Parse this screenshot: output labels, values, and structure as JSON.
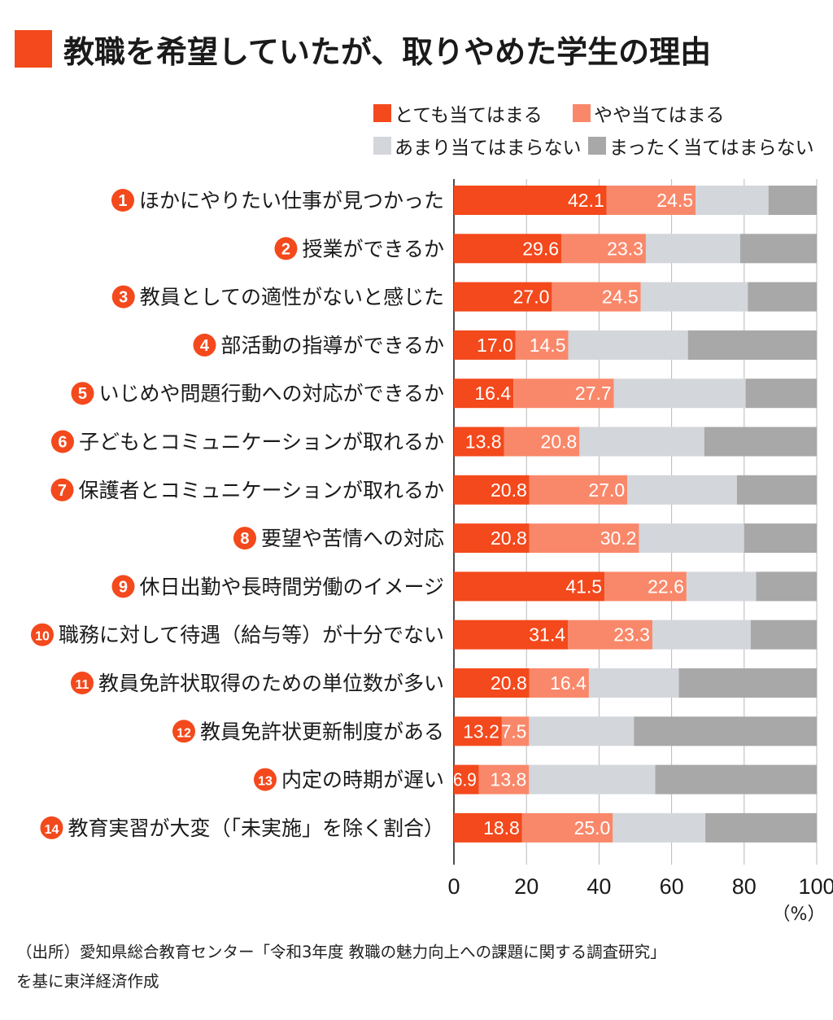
{
  "title": "教職を希望していたが、取りやめた学生の理由",
  "source_lines": [
    "（出所）愛知県総合教育センター「令和3年度 教職の魅力向上への課題に関する調査研究」",
    "を基に東洋経済作成"
  ],
  "colors": {
    "title_mark": "#f3491c",
    "badge": "#f3491c",
    "series": [
      "#f3491c",
      "#f9886a",
      "#d3d6db",
      "#a8a8a8"
    ]
  },
  "chart_data": {
    "type": "bar",
    "orientation": "horizontal",
    "stacked": true,
    "title": "教職を希望していたが、取りやめた学生の理由",
    "unit": "（%）",
    "xlim": [
      0,
      100
    ],
    "xticks": [
      "0",
      "20",
      "40",
      "60",
      "80",
      "100"
    ],
    "grid": true,
    "legend_position": "top-right",
    "badges": [
      "1",
      "2",
      "3",
      "4",
      "5",
      "6",
      "7",
      "8",
      "9",
      "10",
      "11",
      "12",
      "13",
      "14"
    ],
    "categories": [
      "ほかにやりたい仕事が見つかった",
      "授業ができるか",
      "教員としての適性がないと感じた",
      "部活動の指導ができるか",
      "いじめや問題行動への対応ができるか",
      "子どもとコミュニケーションが取れるか",
      "保護者とコミュニケーションが取れるか",
      "要望や苦情への対応",
      "休日出勤や長時間労働のイメージ",
      "職務に対して待遇（給与等）が十分でない",
      "教員免許状取得のための単位数が多い",
      "教員免許状更新制度がある",
      "内定の時期が遅い",
      "教育実習が大変（「未実施」を除く割合）"
    ],
    "series": [
      {
        "name": "とても当てはまる",
        "values": [
          42.1,
          29.6,
          27.0,
          17.0,
          16.4,
          13.8,
          20.8,
          20.8,
          41.5,
          31.4,
          20.8,
          13.2,
          6.9,
          18.8
        ],
        "labels": [
          "42.1",
          "29.6",
          "27.0",
          "17.0",
          "16.4",
          "13.8",
          "20.8",
          "20.8",
          "41.5",
          "31.4",
          "20.8",
          "13.2",
          "6.9",
          "18.8"
        ]
      },
      {
        "name": "やや当てはまる",
        "values": [
          24.5,
          23.3,
          24.5,
          14.5,
          27.7,
          20.8,
          27.0,
          30.2,
          22.6,
          23.3,
          16.4,
          7.5,
          13.8,
          25.0
        ],
        "labels": [
          "24.5",
          "23.3",
          "24.5",
          "14.5",
          "27.7",
          "20.8",
          "27.0",
          "30.2",
          "22.6",
          "23.3",
          "16.4",
          "7.5",
          "13.8",
          "25.0"
        ]
      },
      {
        "name": "あまり当てはまらない",
        "values": [
          20.1,
          26.0,
          29.5,
          33.0,
          36.3,
          34.4,
          30.2,
          29.0,
          19.2,
          27.1,
          24.8,
          28.9,
          34.8,
          25.5
        ]
      },
      {
        "name": "まったく当てはまらない",
        "values": [
          13.3,
          21.1,
          19.0,
          35.5,
          19.6,
          31.0,
          22.0,
          20.0,
          16.7,
          18.2,
          38.0,
          50.4,
          44.5,
          30.7
        ]
      }
    ]
  }
}
